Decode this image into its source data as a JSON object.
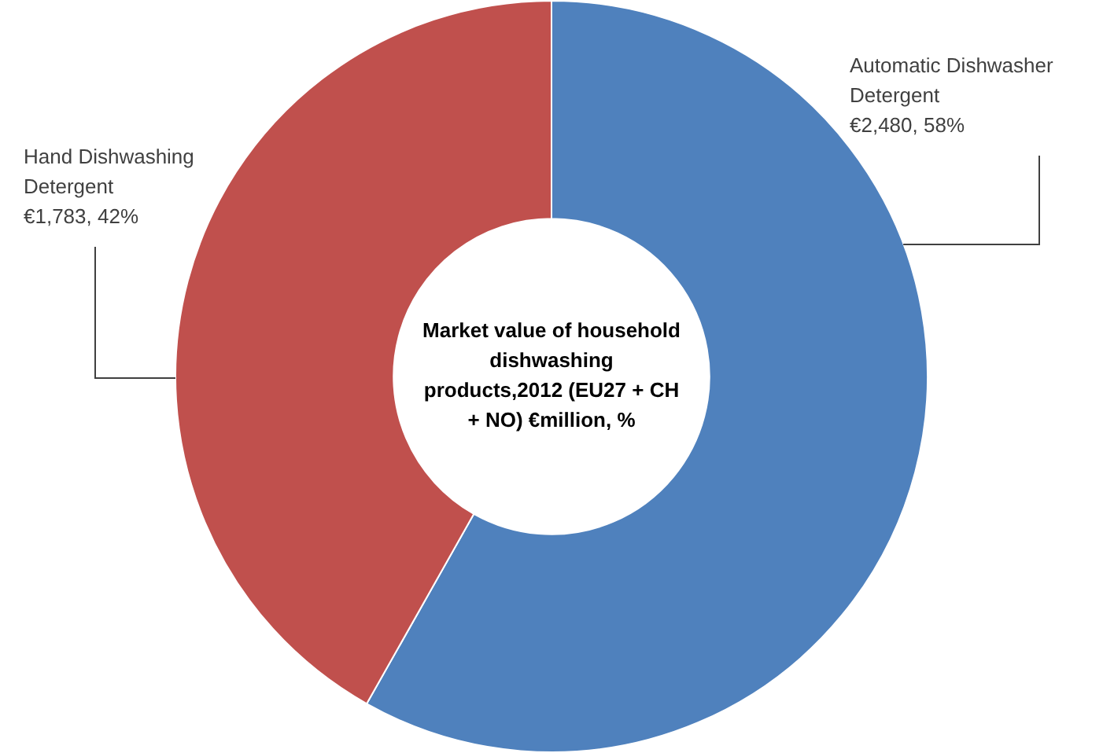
{
  "chart_data": {
    "type": "donut",
    "title": "Market value of household dishwashing products,2012 (EU27 + CH + NO) €million, %",
    "categories": [
      "Automatic Dishwasher Detergent",
      "Hand Dishwashing Detergent"
    ],
    "values": [
      2480,
      1783
    ],
    "colors": [
      "#4f81bd",
      "#c0504d"
    ],
    "value_labels": [
      "€2,480, 58%",
      "€1,783, 42%"
    ],
    "legend": false
  }
}
